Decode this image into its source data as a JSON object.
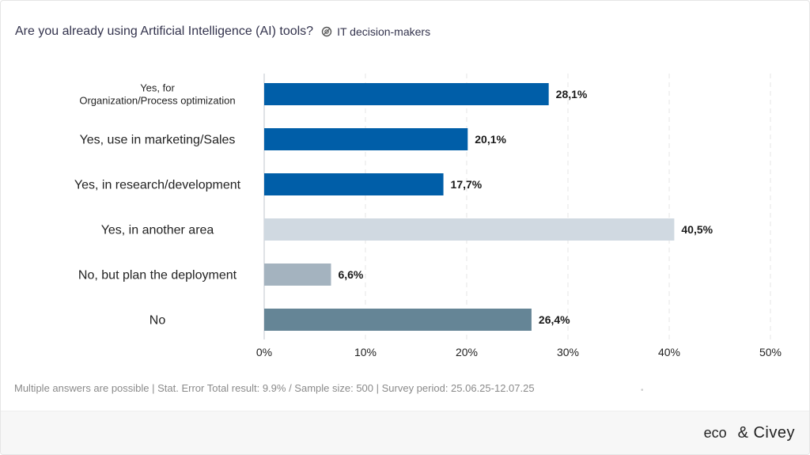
{
  "header": {
    "title": "Are you already using Artificial Intelligence (AI) tools?",
    "audience": "IT decision-makers",
    "audience_icon": "target-circle-icon"
  },
  "chart_data": {
    "type": "bar",
    "orientation": "horizontal",
    "title": "Are you already using Artificial Intelligence (AI) tools?",
    "xlabel": "",
    "ylabel": "",
    "xlim": [
      0,
      50
    ],
    "x_ticks": [
      "0%",
      "10%",
      "20%",
      "30%",
      "40%",
      "50%"
    ],
    "grid": true,
    "categories": [
      "Yes, for\nOrganization/Process optimization",
      "Yes, use in marketing/Sales",
      "Yes, in research/development",
      "Yes, in another area",
      "No, but plan the deployment",
      "No"
    ],
    "values": [
      28.1,
      20.1,
      17.7,
      40.5,
      6.6,
      26.4
    ],
    "value_labels": [
      "28,1%",
      "20,1%",
      "17,7%",
      "40,5%",
      "6,6%",
      "26,4%"
    ],
    "colors": [
      "#005ea8",
      "#005ea8",
      "#005ea8",
      "#d0d9e1",
      "#a4b3bf",
      "#658596"
    ]
  },
  "footer": {
    "note": "Multiple answers are possible | Stat. Error Total result: 9.9% / Sample size: 500 | Survey period: 25.06.25-12.07.25",
    "brand_left": "eco",
    "brand_right": "& Civey"
  }
}
